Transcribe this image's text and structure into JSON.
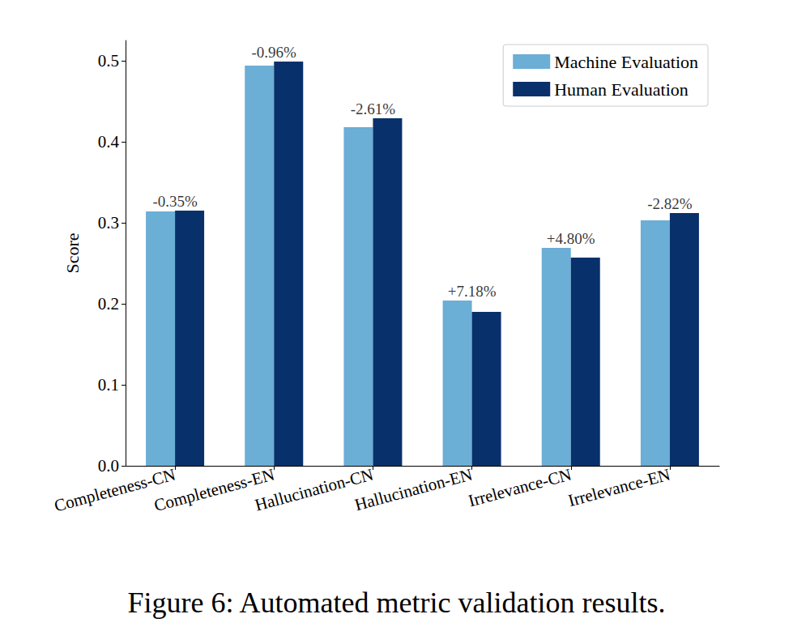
{
  "chart_data": {
    "type": "bar",
    "title": "Figure 6: Automated metric validation results.",
    "y_label": "Score",
    "categories": [
      "Completeness-CN",
      "Completeness-EN",
      "Hallucination-CN",
      "Hallucination-EN",
      "Irrelevance-CN",
      "Irrelevance-EN"
    ],
    "series": [
      {
        "name": "Machine Evaluation",
        "color": "#6baed6",
        "values": [
          0.314,
          0.494,
          0.418,
          0.204,
          0.269,
          0.303
        ]
      },
      {
        "name": "Human Evaluation",
        "color": "#08306b",
        "values": [
          0.315,
          0.499,
          0.429,
          0.19,
          0.257,
          0.312
        ]
      }
    ],
    "annotations": [
      "-0.35%",
      "-0.96%",
      "-2.61%",
      "+7.18%",
      "+4.80%",
      "-2.82%"
    ],
    "ylim": [
      0,
      0.525
    ],
    "yticks": [
      {
        "value": 0,
        "label": "0.0"
      },
      0.1,
      0.2,
      0.3,
      0.4,
      0.5
    ],
    "grid": false,
    "legend": "upper right"
  }
}
